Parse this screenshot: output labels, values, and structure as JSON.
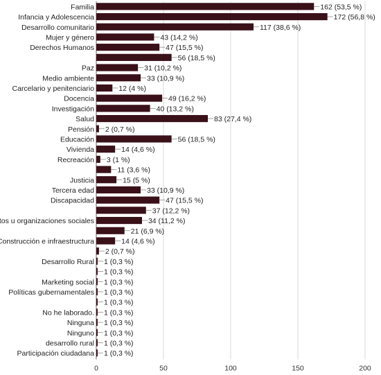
{
  "chart_data": {
    "type": "bar",
    "orientation": "horizontal",
    "title": "",
    "xlabel": "",
    "ylabel": "",
    "xlim": [
      0,
      200
    ],
    "xticks": [
      0,
      50,
      100,
      150,
      200
    ],
    "grid": true,
    "bar_color": "#3a1019",
    "categories": [
      "Familia",
      "Infancia y Adolescencia",
      "Desarrollo comunitario",
      "Mujer y género",
      "Derechos Humanos",
      "",
      "Paz",
      "Medio ambiente",
      "Carcelario y penitenciario",
      "Docencia",
      "Investigación",
      "Salud",
      "Pensión",
      "Educación",
      "Vivienda",
      "Recreación",
      "",
      "Justicia",
      "Tercera edad",
      "Discapacidad",
      "",
      "Movimientos u organizaciones sociales",
      "",
      "Construcción e infraestructura",
      "",
      "Desarrollo Rural",
      "",
      "Marketing social",
      "Políticas gubernamentales",
      "",
      "No he laborado.",
      "Ninguna",
      "Ninguno",
      "desarrollo rural",
      "Participación ciudadana"
    ],
    "values": [
      162,
      172,
      117,
      43,
      47,
      56,
      31,
      33,
      12,
      49,
      40,
      83,
      2,
      56,
      14,
      3,
      11,
      15,
      33,
      47,
      37,
      34,
      21,
      14,
      2,
      1,
      1,
      1,
      1,
      1,
      1,
      1,
      1,
      1,
      1
    ],
    "value_labels": [
      "162 (53,5 %)",
      "172 (56,8 %)",
      "117 (38,6 %)",
      "43 (14,2 %)",
      "47 (15,5 %)",
      "56 (18,5 %)",
      "31 (10,2 %)",
      "33 (10,9 %)",
      "12 (4 %)",
      "49 (16,2 %)",
      "40 (13,2 %)",
      "83 (27,4 %)",
      "2 (0,7 %)",
      "56 (18,5 %)",
      "14 (4,6 %)",
      "3 (1 %)",
      "11 (3,6 %)",
      "15 (5 %)",
      "33 (10,9 %)",
      "47 (15,5 %)",
      "37 (12,2 %)",
      "34 (11,2 %)",
      "21 (6,9 %)",
      "14 (4,6 %)",
      "2 (0,7 %)",
      "1 (0,3 %)",
      "1 (0,3 %)",
      "1 (0,3 %)",
      "1 (0,3 %)",
      "1 (0,3 %)",
      "1 (0,3 %)",
      "1 (0,3 %)",
      "1 (0,3 %)",
      "1 (0,3 %)",
      "1 (0,3 %)"
    ]
  }
}
